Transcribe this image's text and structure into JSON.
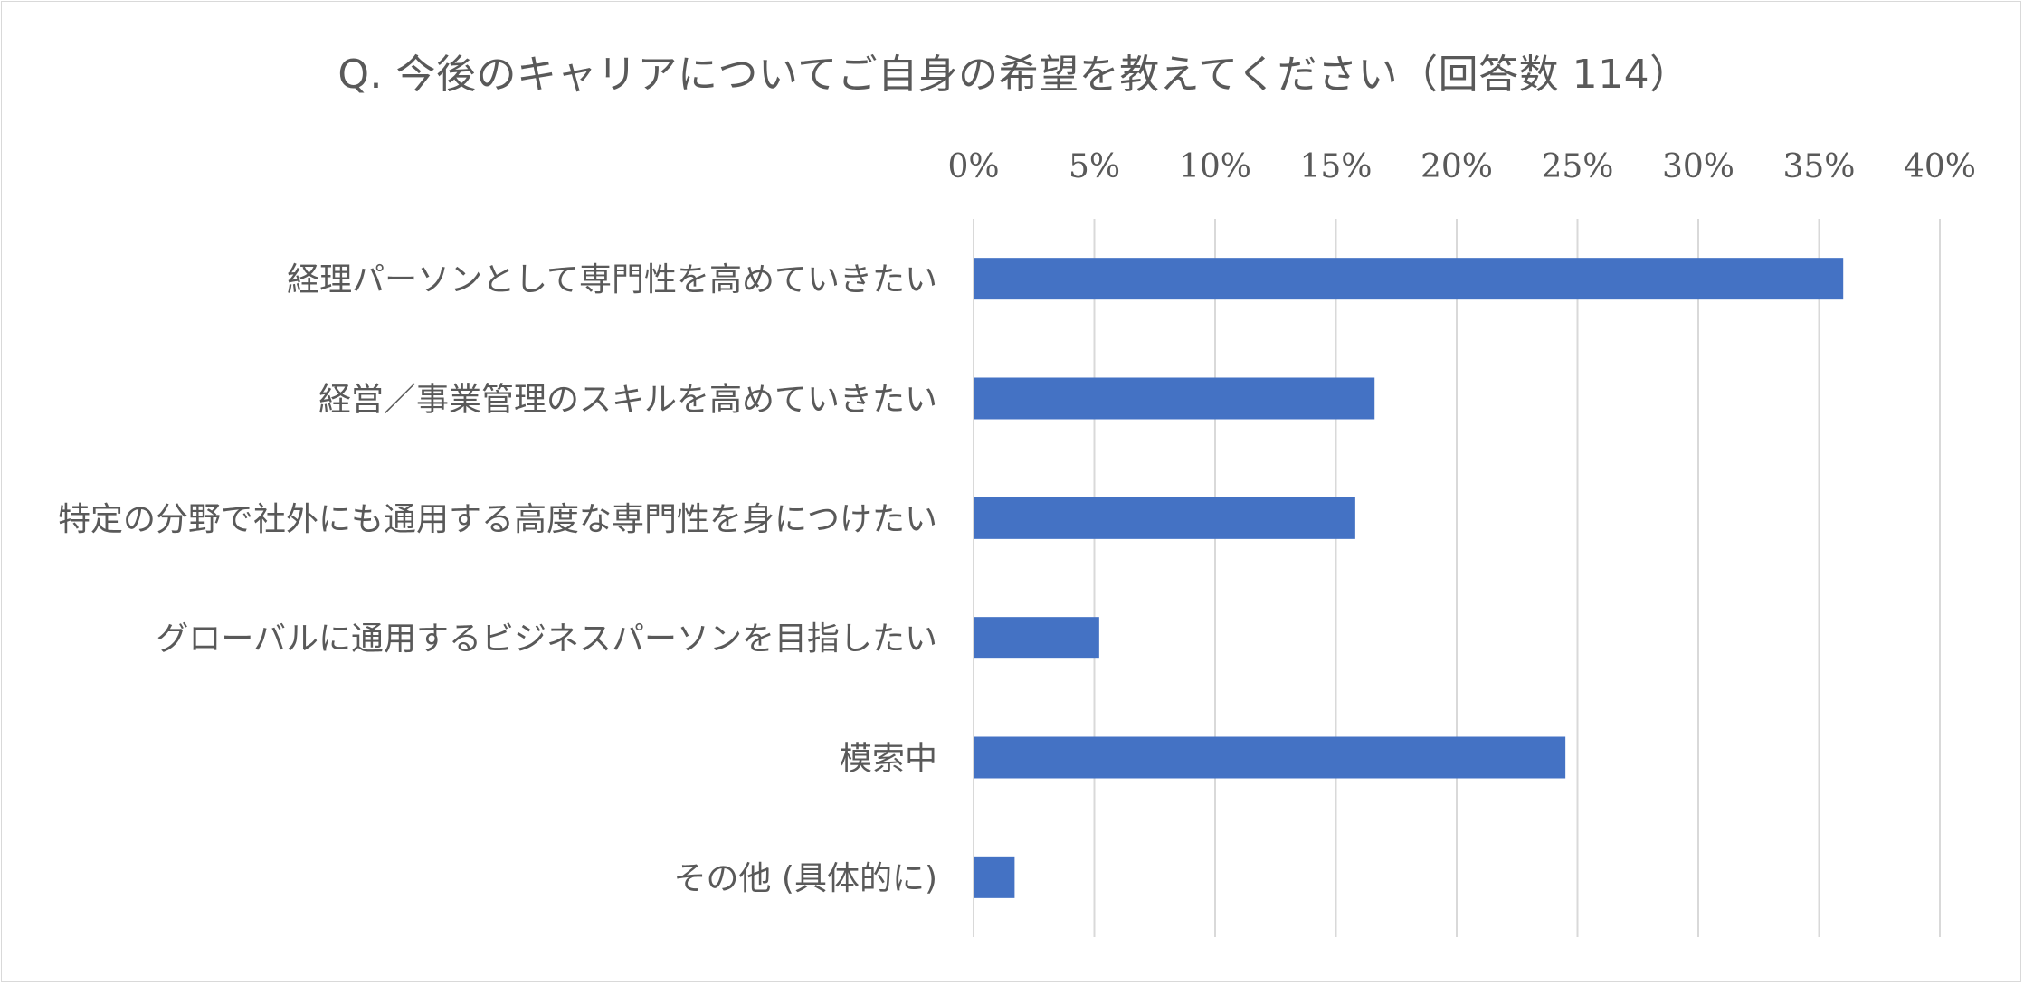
{
  "chart_data": {
    "type": "bar",
    "orientation": "horizontal",
    "title": "Q.  今後のキャリアについてご自身の希望を教えてください（回答数 114）",
    "xlabel": "",
    "ylabel": "",
    "xlim": [
      0,
      40
    ],
    "ticks": [
      "0%",
      "5%",
      "10%",
      "15%",
      "20%",
      "25%",
      "30%",
      "35%",
      "40%"
    ],
    "tick_values": [
      0,
      5,
      10,
      15,
      20,
      25,
      30,
      35,
      40
    ],
    "axis_position": "top",
    "grid": true,
    "legend": "none",
    "categories": [
      "経理パーソンとして専門性を高めていきたい",
      "経営／事業管理のスキルを高めていきたい",
      "特定の分野で社外にも通用する高度な専門性を身につけたい",
      "グローバルに通用するビジネスパーソンを目指したい",
      "模索中",
      "その他 (具体的に)"
    ],
    "values": [
      36,
      16.6,
      15.8,
      5.2,
      24.5,
      1.7
    ],
    "colors": {
      "bar": "#4472c4",
      "grid": "#d9d9d9",
      "text": "#595959"
    }
  }
}
